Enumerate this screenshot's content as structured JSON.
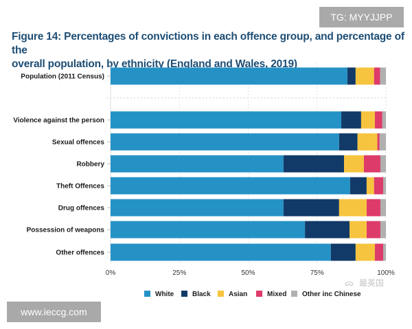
{
  "watermarks": {
    "top": "TG: MYYJJPP",
    "bottom": "www.ieccg.com",
    "wechat": "最英国"
  },
  "chart_data": {
    "type": "bar",
    "orientation": "horizontal",
    "stacked": true,
    "title": "Figure 14: Percentages of convictions in each offence group, and percentage of the overall population, by ethnicity (England and Wales, 2019)",
    "title_line1": "Figure 14: Percentages of convictions in each offence group, and percentage of the",
    "title_line2": "overall population, by ethnicity (England and Wales, 2019)",
    "xlabel": "",
    "ylabel": "",
    "xlim": [
      0,
      100
    ],
    "x_ticks": [
      0,
      25,
      50,
      75,
      100
    ],
    "x_tick_labels": [
      "0%",
      "25%",
      "50%",
      "75%",
      "100%"
    ],
    "grid": true,
    "legend_position": "bottom",
    "categories": [
      "Population (2011 Census)",
      "Violence against the person",
      "Sexual offences",
      "Robbery",
      "Theft Offences",
      "Drug offences",
      "Possession of weapons",
      "Other offences"
    ],
    "series": [
      {
        "name": "White",
        "color": "#2592c6",
        "values": [
          86.0,
          83.8,
          83.0,
          62.8,
          87.0,
          62.8,
          70.6,
          80.0
        ]
      },
      {
        "name": "Black",
        "color": "#123a68",
        "values": [
          3.0,
          7.2,
          6.7,
          22.0,
          6.0,
          20.2,
          16.2,
          9.0
        ]
      },
      {
        "name": "Asian",
        "color": "#f7c43f",
        "values": [
          6.7,
          5.0,
          7.2,
          7.2,
          2.7,
          10.0,
          6.2,
          7.0
        ]
      },
      {
        "name": "Mixed",
        "color": "#dd3b6a",
        "values": [
          2.2,
          2.7,
          0.8,
          6.0,
          3.3,
          5.0,
          5.0,
          3.0
        ]
      },
      {
        "name": "Other inc Chinese",
        "color": "#b0b0b0",
        "values": [
          2.1,
          1.3,
          2.3,
          2.0,
          1.0,
          2.0,
          2.0,
          1.0
        ]
      }
    ]
  }
}
